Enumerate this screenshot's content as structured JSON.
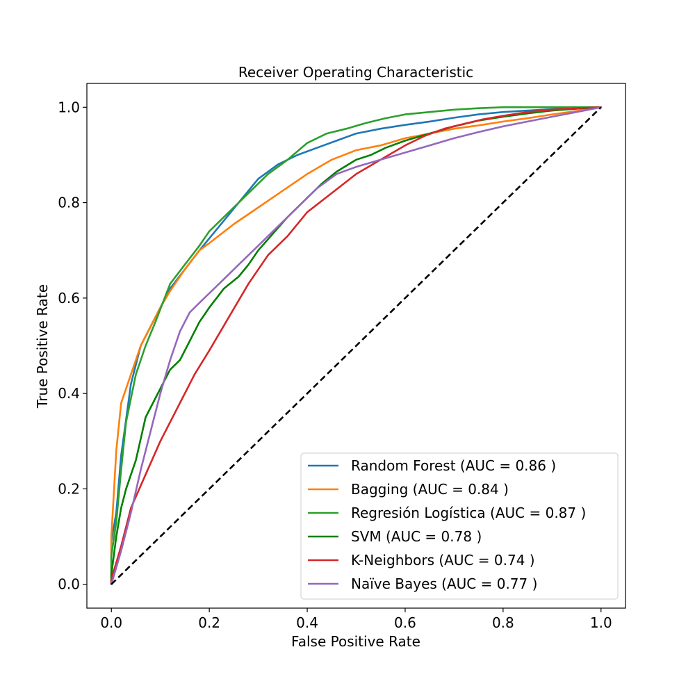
{
  "chart_data": {
    "type": "line",
    "title": "Receiver Operating Characteristic",
    "xlabel": "False Positive Rate",
    "ylabel": "True Positive Rate",
    "xlim": [
      -0.05,
      1.05
    ],
    "ylim": [
      -0.05,
      1.05
    ],
    "xticks": [
      0.0,
      0.2,
      0.4,
      0.6,
      0.8,
      1.0
    ],
    "yticks": [
      0.0,
      0.2,
      0.4,
      0.6,
      0.8,
      1.0
    ],
    "xtick_labels": [
      "0.0",
      "0.2",
      "0.4",
      "0.6",
      "0.8",
      "1.0"
    ],
    "ytick_labels": [
      "0.0",
      "0.2",
      "0.4",
      "0.6",
      "0.8",
      "1.0"
    ],
    "grid": false,
    "legend_position": "lower-right",
    "series": [
      {
        "name": "Random Forest (AUC = 0.86 )",
        "color": "#1f77b4",
        "x": [
          0.0,
          0.0,
          0.01,
          0.02,
          0.04,
          0.06,
          0.08,
          0.1,
          0.12,
          0.15,
          0.18,
          0.22,
          0.26,
          0.3,
          0.34,
          0.38,
          0.42,
          0.46,
          0.5,
          0.55,
          0.6,
          0.65,
          0.7,
          0.75,
          0.8,
          0.85,
          0.9,
          0.95,
          1.0
        ],
        "y": [
          0.0,
          0.09,
          0.15,
          0.27,
          0.42,
          0.5,
          0.54,
          0.58,
          0.62,
          0.66,
          0.7,
          0.75,
          0.8,
          0.85,
          0.88,
          0.9,
          0.915,
          0.93,
          0.945,
          0.955,
          0.963,
          0.97,
          0.978,
          0.985,
          0.99,
          0.993,
          0.996,
          0.998,
          1.0
        ]
      },
      {
        "name": "Bagging (AUC = 0.84 )",
        "color": "#ff7f0e",
        "x": [
          0.0,
          0.0,
          0.01,
          0.02,
          0.04,
          0.06,
          0.08,
          0.1,
          0.12,
          0.15,
          0.18,
          0.2,
          0.25,
          0.3,
          0.35,
          0.4,
          0.45,
          0.5,
          0.55,
          0.6,
          0.65,
          0.7,
          0.75,
          0.8,
          0.85,
          0.9,
          0.95,
          1.0
        ],
        "y": [
          0.0,
          0.1,
          0.28,
          0.38,
          0.44,
          0.5,
          0.54,
          0.58,
          0.615,
          0.66,
          0.7,
          0.715,
          0.755,
          0.79,
          0.825,
          0.86,
          0.89,
          0.91,
          0.92,
          0.935,
          0.945,
          0.955,
          0.962,
          0.97,
          0.977,
          0.985,
          0.992,
          1.0
        ]
      },
      {
        "name": "Regresión Logística (AUC = 0.87 )",
        "color": "#2ca02c",
        "x": [
          0.0,
          0.0,
          0.01,
          0.02,
          0.03,
          0.05,
          0.07,
          0.09,
          0.12,
          0.15,
          0.18,
          0.2,
          0.24,
          0.28,
          0.32,
          0.36,
          0.4,
          0.44,
          0.48,
          0.52,
          0.56,
          0.6,
          0.65,
          0.7,
          0.75,
          0.8,
          0.85,
          0.9,
          0.95,
          1.0
        ],
        "y": [
          0.0,
          0.06,
          0.13,
          0.24,
          0.34,
          0.44,
          0.5,
          0.55,
          0.63,
          0.67,
          0.71,
          0.74,
          0.78,
          0.82,
          0.86,
          0.89,
          0.925,
          0.945,
          0.955,
          0.967,
          0.977,
          0.985,
          0.99,
          0.995,
          0.998,
          1.0,
          1.0,
          1.0,
          1.0,
          1.0
        ]
      },
      {
        "name": "SVM (AUC = 0.78 )",
        "color": "#008000",
        "x": [
          0.0,
          0.0,
          0.01,
          0.02,
          0.03,
          0.05,
          0.07,
          0.09,
          0.12,
          0.14,
          0.16,
          0.18,
          0.2,
          0.23,
          0.26,
          0.28,
          0.3,
          0.33,
          0.36,
          0.4,
          0.43,
          0.46,
          0.5,
          0.53,
          0.56,
          0.6,
          0.65,
          0.7,
          0.75,
          0.8,
          0.85,
          0.9,
          0.95,
          1.0
        ],
        "y": [
          0.0,
          0.02,
          0.1,
          0.16,
          0.2,
          0.26,
          0.35,
          0.39,
          0.45,
          0.47,
          0.51,
          0.55,
          0.58,
          0.62,
          0.645,
          0.67,
          0.7,
          0.735,
          0.77,
          0.81,
          0.84,
          0.865,
          0.89,
          0.9,
          0.915,
          0.93,
          0.945,
          0.96,
          0.972,
          0.98,
          0.987,
          0.993,
          0.997,
          1.0
        ]
      },
      {
        "name": "K-Neighbors (AUC = 0.74 )",
        "color": "#d62728",
        "x": [
          0.0,
          0.0,
          0.02,
          0.04,
          0.07,
          0.1,
          0.14,
          0.17,
          0.2,
          0.24,
          0.28,
          0.32,
          0.36,
          0.4,
          0.45,
          0.5,
          0.55,
          0.6,
          0.64,
          0.68,
          0.72,
          0.76,
          0.8,
          0.85,
          0.9,
          0.95,
          1.0
        ],
        "y": [
          0.0,
          0.01,
          0.08,
          0.16,
          0.23,
          0.3,
          0.38,
          0.44,
          0.49,
          0.56,
          0.63,
          0.69,
          0.73,
          0.78,
          0.82,
          0.86,
          0.89,
          0.92,
          0.94,
          0.955,
          0.965,
          0.975,
          0.982,
          0.99,
          0.995,
          0.998,
          1.0
        ]
      },
      {
        "name": "Naïve Bayes (AUC = 0.77 )",
        "color": "#9467bd",
        "x": [
          0.0,
          0.0,
          0.02,
          0.04,
          0.06,
          0.08,
          0.1,
          0.12,
          0.14,
          0.16,
          0.18,
          0.2,
          0.23,
          0.26,
          0.3,
          0.34,
          0.38,
          0.42,
          0.46,
          0.5,
          0.55,
          0.6,
          0.65,
          0.7,
          0.75,
          0.8,
          0.85,
          0.9,
          0.95,
          1.0
        ],
        "y": [
          0.0,
          0.0,
          0.07,
          0.15,
          0.24,
          0.32,
          0.4,
          0.47,
          0.53,
          0.57,
          0.59,
          0.61,
          0.64,
          0.67,
          0.71,
          0.75,
          0.79,
          0.83,
          0.86,
          0.875,
          0.89,
          0.905,
          0.92,
          0.935,
          0.948,
          0.96,
          0.97,
          0.98,
          0.99,
          1.0
        ]
      }
    ],
    "reference_line": {
      "x": [
        0.0,
        1.0
      ],
      "y": [
        0.0,
        1.0
      ],
      "color": "#000000",
      "style": "dashed"
    }
  }
}
